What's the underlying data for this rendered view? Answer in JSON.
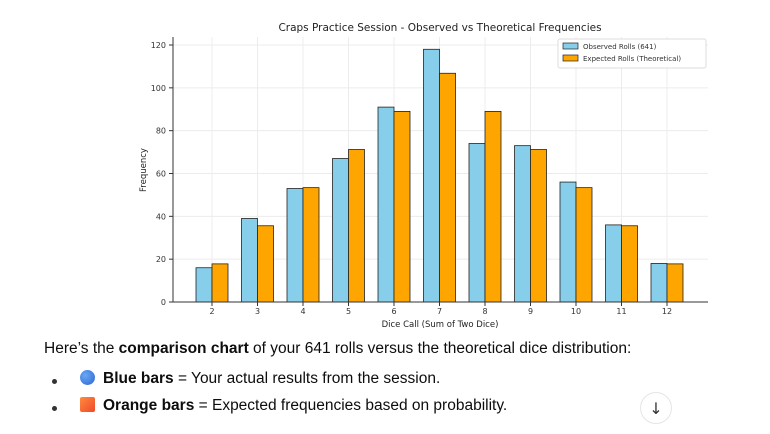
{
  "chart_data": {
    "type": "bar",
    "title": "Craps Practice Session - Observed vs Theoretical Frequencies",
    "xlabel": "Dice Call (Sum of Two Dice)",
    "ylabel": "Frequency",
    "categories": [
      "2",
      "3",
      "4",
      "5",
      "6",
      "7",
      "8",
      "9",
      "10",
      "11",
      "12"
    ],
    "series": [
      {
        "name": "Observed Rolls (641)",
        "color": "#87ceeb",
        "values": [
          16,
          39,
          53,
          67,
          91,
          118,
          74,
          73,
          56,
          36,
          18
        ]
      },
      {
        "name": "Expected Rolls (Theoretical)",
        "color": "#ffa500",
        "values": [
          17.8,
          35.6,
          53.4,
          71.2,
          89.0,
          106.8,
          89.0,
          71.2,
          53.4,
          35.6,
          17.8
        ]
      }
    ],
    "ylim": [
      0,
      122
    ],
    "yticks": [
      0,
      20,
      40,
      60,
      80,
      100,
      120
    ],
    "grid": true,
    "legend": "top-right"
  },
  "message": {
    "intro_pre": "Here’s the ",
    "intro_bold": "comparison chart",
    "intro_post": " of your 641 rolls versus the theoretical dice distribution:",
    "items": [
      {
        "bold": "Blue bars",
        "text": " = Your actual results from the session.",
        "icon": "blue-circle",
        "color": "#3b7de0"
      },
      {
        "bold": "Orange bars",
        "text": " = Expected frequencies based on probability.",
        "icon": "orange-square",
        "color": "#f4622f"
      }
    ],
    "scroll_icon": "arrow-down-icon"
  }
}
